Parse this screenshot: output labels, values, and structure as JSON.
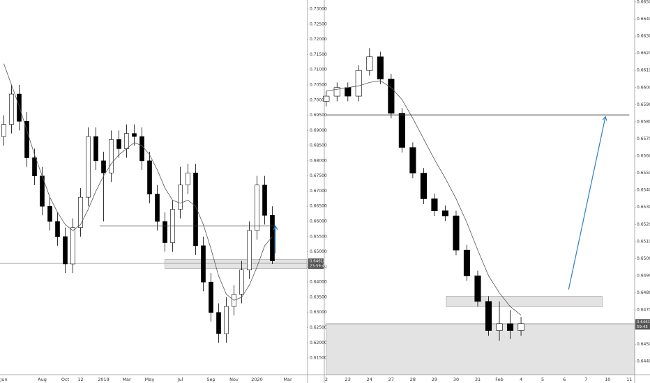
{
  "chart_data": [
    {
      "type": "candlestick",
      "categories": [
        "Jun",
        null,
        null,
        null,
        null,
        "Aug",
        null,
        null,
        "Oct",
        null,
        "12",
        null,
        null,
        "2019",
        null,
        null,
        "Mar",
        null,
        null,
        "May",
        null,
        null,
        null,
        "Jul",
        null,
        null,
        null,
        "Sep",
        null,
        null,
        "Nov",
        null,
        null,
        "2020",
        null,
        null,
        null,
        "Mar",
        null,
        null
      ],
      "open": [
        0.688,
        0.692,
        0.702,
        0.693,
        0.681,
        0.675,
        0.665,
        0.66,
        0.655,
        0.646,
        0.658,
        0.668,
        0.688,
        0.68,
        0.676,
        0.687,
        0.684,
        0.689,
        0.688,
        0.68,
        0.669,
        0.66,
        0.653,
        0.664,
        0.672,
        0.676,
        0.652,
        0.64,
        0.63,
        0.623,
        0.632,
        0.636,
        0.644,
        0.657,
        0.672,
        0.662,
        null,
        null,
        null,
        null
      ],
      "high": [
        0.695,
        0.705,
        0.705,
        0.696,
        0.684,
        0.678,
        0.668,
        0.663,
        0.658,
        0.661,
        0.671,
        0.691,
        0.691,
        0.683,
        0.69,
        0.69,
        0.692,
        0.692,
        0.691,
        0.683,
        0.672,
        0.663,
        0.667,
        0.678,
        0.679,
        0.679,
        0.655,
        0.643,
        0.633,
        0.635,
        0.639,
        0.647,
        0.66,
        0.675,
        0.675,
        0.665,
        null,
        null,
        null,
        null
      ],
      "low": [
        0.685,
        0.689,
        0.69,
        0.678,
        0.672,
        0.662,
        0.657,
        0.652,
        0.643,
        0.643,
        0.655,
        0.665,
        0.677,
        0.66,
        0.673,
        0.681,
        0.681,
        0.685,
        0.677,
        0.666,
        0.657,
        0.65,
        0.65,
        0.661,
        0.669,
        0.649,
        0.637,
        0.627,
        0.62,
        0.62,
        0.629,
        0.633,
        0.641,
        0.654,
        0.659,
        0.646,
        null,
        null,
        null,
        null
      ],
      "close": [
        0.692,
        0.702,
        0.693,
        0.681,
        0.675,
        0.665,
        0.66,
        0.655,
        0.646,
        0.658,
        0.668,
        0.688,
        0.68,
        0.676,
        0.687,
        0.684,
        0.689,
        0.688,
        0.68,
        0.669,
        0.66,
        0.653,
        0.664,
        0.672,
        0.676,
        0.652,
        0.64,
        0.63,
        0.623,
        0.632,
        0.636,
        0.644,
        0.657,
        0.672,
        0.662,
        0.647,
        null,
        null,
        null,
        null
      ],
      "ma": [
        0.712,
        0.705,
        0.698,
        0.69,
        0.682,
        0.675,
        0.668,
        0.663,
        0.659,
        0.657,
        0.659,
        0.664,
        0.67,
        0.675,
        0.679,
        0.682,
        0.684,
        0.686,
        0.685,
        0.682,
        0.677,
        0.671,
        0.667,
        0.666,
        0.667,
        0.665,
        0.659,
        0.651,
        0.642,
        0.636,
        0.634,
        0.635,
        0.639,
        0.645,
        0.652,
        0.655,
        null,
        null,
        null,
        null
      ],
      "up_color": "#ffffff",
      "down_color": "#000000",
      "edge_color": "#000000",
      "ma_color": "#555555",
      "ylim": [
        0.6095,
        0.733
      ],
      "yticks": [
        {
          "value": 0.615,
          "label": "0.61500"
        },
        {
          "value": 0.62,
          "label": "0.62000"
        },
        {
          "value": 0.625,
          "label": "0.62500"
        },
        {
          "value": 0.63,
          "label": "0.63000"
        },
        {
          "value": 0.635,
          "label": "0.63500"
        },
        {
          "value": 0.64,
          "label": "0.64000"
        },
        {
          "value": 0.645,
          "label": "0.64500"
        },
        {
          "value": 0.65,
          "label": "0.65000"
        },
        {
          "value": 0.655,
          "label": "0.65500"
        },
        {
          "value": 0.66,
          "label": "0.66000"
        },
        {
          "value": 0.665,
          "label": "0.66500"
        },
        {
          "value": 0.67,
          "label": "0.67000"
        },
        {
          "value": 0.675,
          "label": "0.67500"
        },
        {
          "value": 0.68,
          "label": "0.68000"
        },
        {
          "value": 0.685,
          "label": "0.68500"
        },
        {
          "value": 0.69,
          "label": "0.69000"
        },
        {
          "value": 0.695,
          "label": "0.69500"
        },
        {
          "value": 0.7,
          "label": "0.70000"
        },
        {
          "value": 0.705,
          "label": "0.70500"
        },
        {
          "value": 0.71,
          "label": "0.71000"
        },
        {
          "value": 0.715,
          "label": "0.71500"
        },
        {
          "value": 0.72,
          "label": "0.72000"
        },
        {
          "value": 0.725,
          "label": "0.72500"
        },
        {
          "value": 0.73,
          "label": "0.73000"
        }
      ],
      "hlines": [
        {
          "value": 0.6585,
          "from": 12.5,
          "to": 35.5,
          "color": "#444444"
        }
      ],
      "zones": [
        {
          "low": 0.6445,
          "high": 0.6475,
          "from": 21,
          "to": 39.5,
          "color": "#e3e3e3"
        }
      ],
      "arrows": [
        {
          "x0": 35.4,
          "y0": 0.6495,
          "x1": 35.4,
          "y1": 0.6585,
          "color": "#2a7fc4"
        }
      ],
      "price_label": {
        "value": 0.64618,
        "label": "0.64618",
        "countdown": "23:59:45"
      }
    },
    {
      "type": "candlestick",
      "categories": [
        "2",
        null,
        "23",
        null,
        "24",
        null,
        "27",
        null,
        "28",
        null,
        "29",
        null,
        "30",
        null,
        "31",
        null,
        "Feb",
        null,
        "4",
        null,
        "5",
        null,
        "6",
        null,
        "7",
        null,
        "10",
        null,
        "11"
      ],
      "open": [
        0.6592,
        0.6595,
        0.66,
        0.6595,
        0.661,
        0.6618,
        0.6605,
        0.6585,
        0.6565,
        0.655,
        0.6535,
        0.6528,
        0.6525,
        0.6505,
        0.649,
        0.6475,
        0.6458,
        0.6462,
        0.6458,
        null,
        null,
        null,
        null,
        null,
        null,
        null,
        null,
        null,
        null
      ],
      "high": [
        0.6598,
        0.6603,
        0.6603,
        0.6613,
        0.6623,
        0.6621,
        0.6608,
        0.6588,
        0.6568,
        0.6553,
        0.6538,
        0.6531,
        0.6528,
        0.6508,
        0.6493,
        0.6478,
        0.6475,
        0.647,
        0.6466,
        null,
        null,
        null,
        null,
        null,
        null,
        null,
        null,
        null,
        null
      ],
      "low": [
        0.6589,
        0.6592,
        0.6592,
        0.6592,
        0.6607,
        0.6602,
        0.6582,
        0.6562,
        0.6547,
        0.6532,
        0.6525,
        0.6522,
        0.6502,
        0.6487,
        0.6472,
        0.6455,
        0.6452,
        0.6453,
        0.6455,
        null,
        null,
        null,
        null,
        null,
        null,
        null,
        null,
        null,
        null
      ],
      "close": [
        0.6595,
        0.66,
        0.6595,
        0.661,
        0.6618,
        0.6605,
        0.6585,
        0.6565,
        0.655,
        0.6535,
        0.6528,
        0.6525,
        0.6505,
        0.649,
        0.6475,
        0.6458,
        0.6462,
        0.6458,
        0.6462,
        null,
        null,
        null,
        null,
        null,
        null,
        null,
        null,
        null,
        null
      ],
      "ma": [
        0.6598,
        0.6599,
        0.66,
        0.6601,
        0.6603,
        0.6604,
        0.66,
        0.6593,
        0.6582,
        0.657,
        0.6558,
        0.6547,
        0.6535,
        0.6521,
        0.6505,
        0.649,
        0.648,
        0.6472,
        0.6467,
        null,
        null,
        null,
        null,
        null,
        null,
        null,
        null,
        null,
        null
      ],
      "up_color": "#ffffff",
      "down_color": "#000000",
      "edge_color": "#000000",
      "ma_color": "#555555",
      "ylim": [
        0.64322,
        0.66512
      ],
      "yticks": [
        {
          "value": 0.644,
          "label": "0.64400"
        },
        {
          "value": 0.645,
          "label": "0.64500"
        },
        {
          "value": 0.646,
          "label": "0.64600"
        },
        {
          "value": 0.647,
          "label": "0.64700"
        },
        {
          "value": 0.648,
          "label": "0.64800"
        },
        {
          "value": 0.649,
          "label": "0.64900"
        },
        {
          "value": 0.65,
          "label": "0.65000"
        },
        {
          "value": 0.651,
          "label": "0.65100"
        },
        {
          "value": 0.652,
          "label": "0.65200"
        },
        {
          "value": 0.653,
          "label": "0.65300"
        },
        {
          "value": 0.654,
          "label": "0.65400"
        },
        {
          "value": 0.655,
          "label": "0.65500"
        },
        {
          "value": 0.656,
          "label": "0.65600"
        },
        {
          "value": 0.657,
          "label": "0.65700"
        },
        {
          "value": 0.658,
          "label": "0.65800"
        },
        {
          "value": 0.659,
          "label": "0.65900"
        },
        {
          "value": 0.66,
          "label": "0.66000"
        },
        {
          "value": 0.661,
          "label": "0.66100"
        },
        {
          "value": 0.662,
          "label": "0.66200"
        },
        {
          "value": 0.663,
          "label": "0.66300"
        },
        {
          "value": 0.664,
          "label": "0.66400"
        },
        {
          "value": 0.665,
          "label": "0.66500"
        }
      ],
      "hlines": [
        {
          "value": 0.6584,
          "from": 0,
          "to": 28,
          "color": "#444444"
        }
      ],
      "zones": [
        {
          "low": 0.6472,
          "high": 0.6478,
          "from": 11.1,
          "to": 25.5,
          "color": "#e3e3e3"
        },
        {
          "low": 0.64322,
          "high": 0.6462,
          "from": 0,
          "to": 29,
          "color": "#e3e3e3"
        }
      ],
      "arrows": [
        {
          "x0": 22.4,
          "y0": 0.6482,
          "x1": 25.8,
          "y1": 0.6583,
          "color": "#2a7fc4"
        }
      ],
      "price_label": {
        "value": 0.64618,
        "label": "0.64618",
        "countdown": "59:45"
      }
    }
  ]
}
